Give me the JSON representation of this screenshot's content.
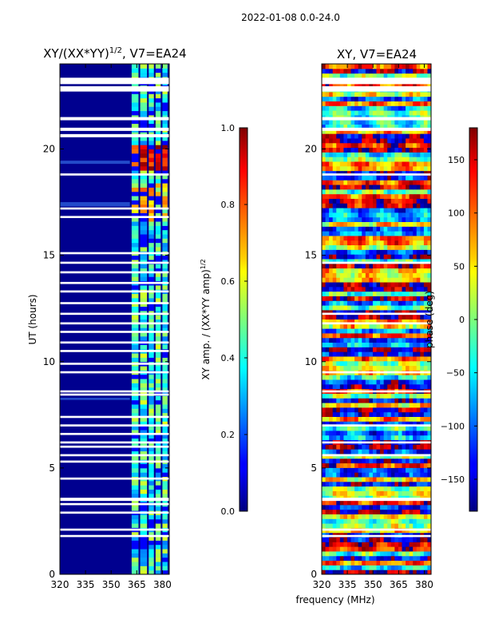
{
  "suptitle": "2022-01-08 0.0-24.0",
  "chart_data": [
    {
      "type": "heatmap",
      "title": "XY/(XX*YY)",
      "title_sup": "1/2",
      "title_suffix": ", V7=EA24",
      "xlabel": "",
      "ylabel": "UT (hours)",
      "xlim": [
        320,
        384
      ],
      "ylim": [
        0,
        24
      ],
      "xticks": [
        "320",
        "335",
        "350",
        "365",
        "380"
      ],
      "yticks": [
        "0",
        "5",
        "10",
        "15",
        "20"
      ],
      "colorbar": {
        "label": "XY amp. / (XX*YY amp)",
        "label_sup": "1/2",
        "range": [
          0.0,
          1.0
        ],
        "ticks": [
          "0.0",
          "0.2",
          "0.4",
          "0.6",
          "0.8",
          "1.0"
        ]
      },
      "colormap": "jet",
      "data_gaps_ut_hours": [
        [
          23.05,
          23.35
        ],
        [
          22.7,
          22.95
        ],
        [
          21.35,
          21.5
        ],
        [
          20.85,
          21.0
        ],
        [
          20.55,
          20.7
        ],
        [
          18.75,
          18.85
        ],
        [
          17.15,
          17.25
        ],
        [
          16.75,
          16.85
        ],
        [
          15.05,
          15.15
        ],
        [
          14.6,
          14.7
        ],
        [
          14.15,
          14.25
        ],
        [
          13.65,
          13.75
        ],
        [
          13.25,
          13.35
        ],
        [
          12.7,
          12.8
        ],
        [
          12.2,
          12.3
        ],
        [
          11.75,
          11.85
        ],
        [
          11.35,
          11.45
        ],
        [
          10.85,
          10.95
        ],
        [
          10.45,
          10.55
        ],
        [
          9.85,
          9.95
        ],
        [
          9.45,
          9.55
        ],
        [
          8.55,
          8.65
        ],
        [
          8.4,
          8.5
        ],
        [
          7.35,
          7.45
        ],
        [
          6.95,
          7.05
        ],
        [
          6.55,
          6.65
        ],
        [
          6.15,
          6.25
        ],
        [
          5.95,
          6.05
        ],
        [
          5.55,
          5.65
        ],
        [
          5.25,
          5.35
        ],
        [
          4.45,
          4.55
        ],
        [
          3.45,
          3.6
        ],
        [
          3.25,
          3.35
        ],
        [
          2.85,
          2.95
        ],
        [
          2.05,
          2.15
        ],
        [
          1.75,
          1.85
        ]
      ],
      "bright_channel_bands_mhz": [
        [
          362,
          366
        ],
        [
          367,
          371
        ],
        [
          372,
          375
        ],
        [
          376,
          379
        ],
        [
          380,
          383
        ]
      ],
      "peak_amplitude_ut_hours": [
        19.2,
        20.0
      ]
    },
    {
      "type": "heatmap",
      "title": "XY, V7=EA24",
      "xlabel": "frequency (MHz)",
      "ylabel": "",
      "xlim": [
        320,
        384
      ],
      "ylim": [
        0,
        24
      ],
      "xticks": [
        "320",
        "335",
        "350",
        "365",
        "380"
      ],
      "yticks": [
        "0",
        "5",
        "10",
        "15",
        "20"
      ],
      "colorbar": {
        "label": "phase (deg)",
        "range": [
          -180,
          180
        ],
        "ticks": [
          "-150",
          "-100",
          "-50",
          "0",
          "50",
          "100",
          "150"
        ]
      },
      "colormap": "jet",
      "data_gaps_ut_hours": [
        [
          23.05,
          23.35
        ],
        [
          22.7,
          22.95
        ],
        [
          21.35,
          21.5
        ],
        [
          20.85,
          21.0
        ],
        [
          18.75,
          18.85
        ],
        [
          14.6,
          14.7
        ],
        [
          12.2,
          12.3
        ],
        [
          11.75,
          11.85
        ],
        [
          9.45,
          9.55
        ],
        [
          8.55,
          8.65
        ],
        [
          6.95,
          7.05
        ],
        [
          6.15,
          6.25
        ],
        [
          5.55,
          5.65
        ],
        [
          3.45,
          3.6
        ],
        [
          2.05,
          2.15
        ],
        [
          1.75,
          1.85
        ]
      ]
    }
  ]
}
